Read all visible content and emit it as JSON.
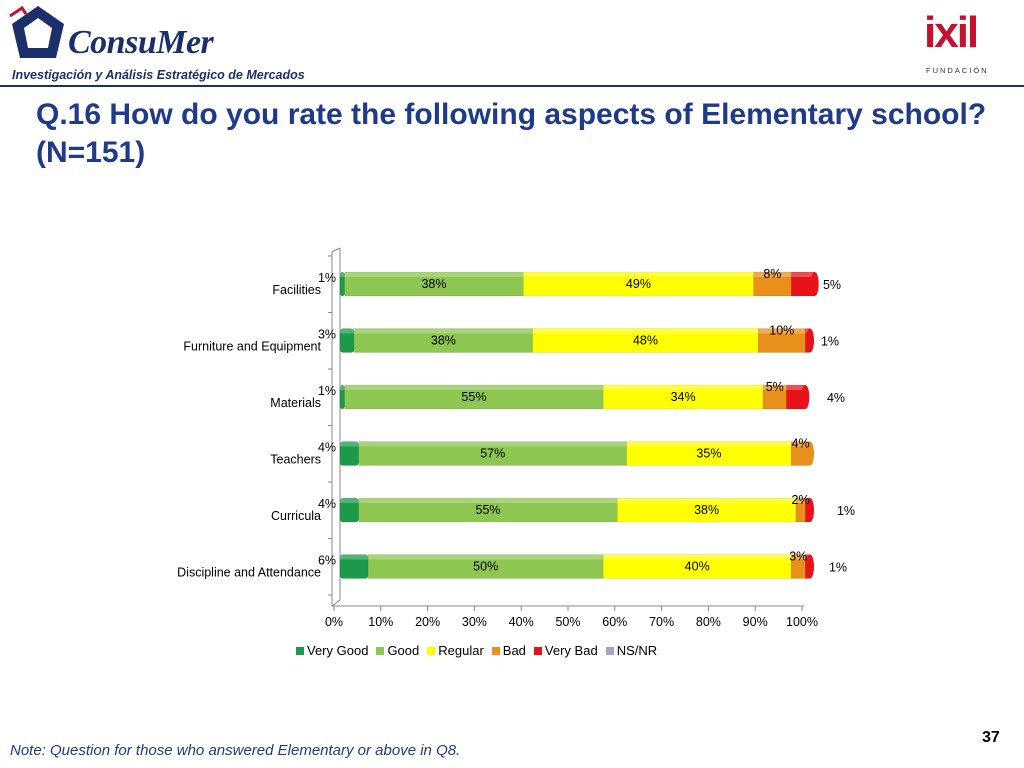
{
  "header": {
    "logo_name": "ConsuMer",
    "logo_tagline": "Investigación y Análisis Estratégico de Mercados",
    "partner_logo": "ixil",
    "partner_sub": "FUNDACIÓN"
  },
  "title": "Q.16  How do you rate the following aspects of Elementary school? (N=151)",
  "note": "Note: Question for those who answered Elementary or above in Q8.",
  "page_number": "37",
  "colors": {
    "very_good": "#1a9a4a",
    "good": "#8dc651",
    "regular": "#ffff00",
    "bad": "#e8901a",
    "very_bad": "#e8121a",
    "ns_nr": "#a6a6c0"
  },
  "chart_data": {
    "type": "bar",
    "orientation": "horizontal",
    "stacked": true,
    "categories": [
      "Facilities",
      "Furniture and Equipment",
      "Materials",
      "Teachers",
      "Curricula",
      "Discipline and Attendance"
    ],
    "series": [
      {
        "name": "Very Good",
        "values": [
          1,
          3,
          1,
          4,
          4,
          6
        ],
        "labels": [
          "1%",
          "3%",
          "1%",
          "4%",
          "4%",
          "6%"
        ]
      },
      {
        "name": "Good",
        "values": [
          38,
          38,
          55,
          57,
          55,
          50
        ],
        "labels": [
          "38%",
          "38%",
          "55%",
          "57%",
          "55%",
          "50%"
        ]
      },
      {
        "name": "Regular",
        "values": [
          49,
          48,
          34,
          35,
          38,
          40
        ],
        "labels": [
          "49%",
          "48%",
          "34%",
          "35%",
          "38%",
          "40%"
        ]
      },
      {
        "name": "Bad",
        "values": [
          8,
          10,
          5,
          4,
          2,
          3
        ],
        "labels": [
          "8%",
          "10%",
          "5%",
          "4%",
          "2%",
          "3%"
        ]
      },
      {
        "name": "Very Bad",
        "values": [
          5,
          1,
          4,
          0,
          1,
          1
        ],
        "labels": [
          "5%",
          "1%",
          "4%",
          "",
          "1%",
          "1%"
        ]
      },
      {
        "name": "NS/NR",
        "values": [
          0,
          0,
          0,
          0,
          0,
          0
        ],
        "labels": [
          "",
          "",
          "",
          "",
          "",
          ""
        ]
      }
    ],
    "x_ticks": [
      "0%",
      "10%",
      "20%",
      "30%",
      "40%",
      "50%",
      "60%",
      "70%",
      "80%",
      "90%",
      "100%"
    ],
    "xlim": [
      0,
      100
    ],
    "legend_position": "bottom",
    "grid": false
  }
}
